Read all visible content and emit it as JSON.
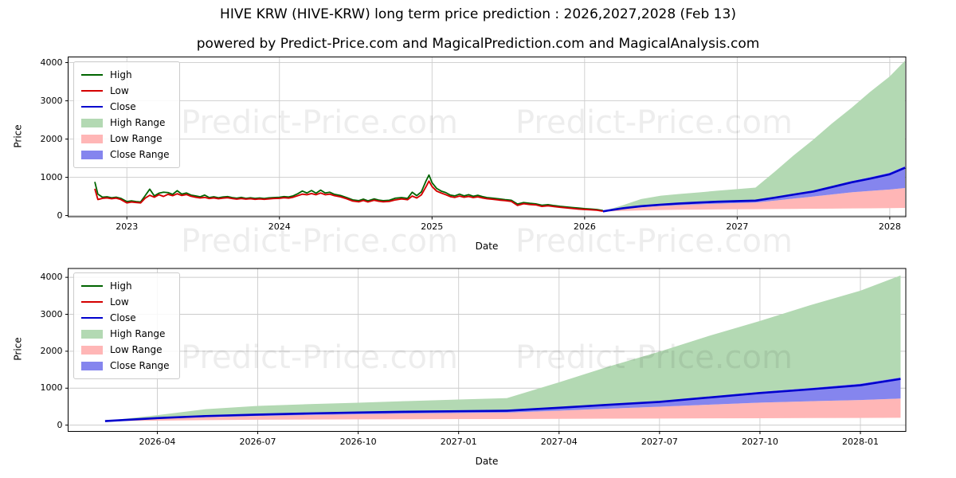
{
  "page": {
    "title": "HIVE KRW (HIVE-KRW) long term price prediction : 2026,2027,2028 (Feb 13)",
    "subtitle": "powered by Predict-Price.com and MagicalPrediction.com and MagicalAnalysis.com",
    "watermark": "Predict-Price.com"
  },
  "colors": {
    "high": "#006400",
    "low": "#d40000",
    "close": "#0000cd",
    "high_range": "#b3d9b3",
    "low_range": "#ffb6b6",
    "close_range": "#8585ee",
    "grid": "#cccccc",
    "spine": "#000000"
  },
  "legend": {
    "items": [
      {
        "label": "High",
        "swatch": "line",
        "color_key": "high"
      },
      {
        "label": "Low",
        "swatch": "line",
        "color_key": "low"
      },
      {
        "label": "Close",
        "swatch": "line",
        "color_key": "close"
      },
      {
        "label": "High Range",
        "swatch": "patch",
        "color_key": "high_range"
      },
      {
        "label": "Low Range",
        "swatch": "patch",
        "color_key": "low_range"
      },
      {
        "label": "Close Range",
        "swatch": "patch",
        "color_key": "close_range"
      }
    ]
  },
  "chart_data": [
    {
      "type": "line",
      "title": "",
      "xlabel": "Date",
      "ylabel": "Price",
      "grid": true,
      "legend_position": "upper left",
      "xlim_years": [
        2022.615,
        2028.105
      ],
      "ylim": [
        -30,
        4147
      ],
      "yticks": [
        0,
        1000,
        2000,
        3000,
        4000
      ],
      "xticks": [
        {
          "label": "2023",
          "x": 2023
        },
        {
          "label": "2024",
          "x": 2024
        },
        {
          "label": "2025",
          "x": 2025
        },
        {
          "label": "2026",
          "x": 2026
        },
        {
          "label": "2027",
          "x": 2027
        },
        {
          "label": "2028",
          "x": 2028
        }
      ],
      "series": {
        "historical": {
          "x": [
            2022.79,
            2022.81,
            2022.84,
            2022.87,
            2022.9,
            2022.93,
            2022.96,
            2023.0,
            2023.03,
            2023.06,
            2023.09,
            2023.12,
            2023.15,
            2023.18,
            2023.21,
            2023.24,
            2023.27,
            2023.3,
            2023.33,
            2023.36,
            2023.39,
            2023.42,
            2023.45,
            2023.48,
            2023.51,
            2023.54,
            2023.57,
            2023.6,
            2023.63,
            2023.66,
            2023.69,
            2023.72,
            2023.75,
            2023.78,
            2023.81,
            2023.84,
            2023.87,
            2023.9,
            2023.93,
            2023.96,
            2024.0,
            2024.03,
            2024.06,
            2024.09,
            2024.12,
            2024.15,
            2024.18,
            2024.21,
            2024.24,
            2024.27,
            2024.3,
            2024.33,
            2024.36,
            2024.4,
            2024.44,
            2024.48,
            2024.52,
            2024.55,
            2024.58,
            2024.62,
            2024.65,
            2024.68,
            2024.72,
            2024.76,
            2024.8,
            2024.84,
            2024.87,
            2024.9,
            2024.93,
            2024.96,
            2024.98,
            2025.0,
            2025.03,
            2025.06,
            2025.09,
            2025.12,
            2025.15,
            2025.18,
            2025.21,
            2025.24,
            2025.27,
            2025.3,
            2025.33,
            2025.36,
            2025.4,
            2025.44,
            2025.48,
            2025.52,
            2025.56,
            2025.6,
            2025.64,
            2025.68,
            2025.72,
            2025.76,
            2025.8,
            2025.84,
            2025.88,
            2025.92,
            2025.96,
            2026.0,
            2026.04,
            2026.08,
            2026.12
          ],
          "low": [
            700,
            420,
            450,
            460,
            440,
            455,
            420,
            330,
            355,
            340,
            330,
            455,
            530,
            480,
            545,
            500,
            555,
            520,
            570,
            525,
            550,
            505,
            480,
            460,
            475,
            445,
            460,
            440,
            455,
            465,
            445,
            430,
            445,
            430,
            440,
            425,
            435,
            425,
            435,
            445,
            450,
            465,
            455,
            480,
            520,
            560,
            545,
            575,
            545,
            590,
            545,
            560,
            520,
            490,
            440,
            380,
            360,
            395,
            355,
            400,
            375,
            360,
            370,
            410,
            435,
            415,
            510,
            460,
            540,
            750,
            900,
            760,
            640,
            590,
            545,
            495,
            475,
            510,
            480,
            500,
            470,
            490,
            460,
            440,
            425,
            405,
            390,
            370,
            265,
            310,
            290,
            280,
            240,
            255,
            235,
            215,
            200,
            185,
            170,
            160,
            150,
            140,
            115
          ],
          "high": [
            880,
            560,
            480,
            490,
            465,
            480,
            450,
            365,
            385,
            365,
            355,
            520,
            690,
            515,
            585,
            610,
            600,
            555,
            650,
            560,
            590,
            535,
            515,
            490,
            535,
            470,
            490,
            465,
            485,
            495,
            470,
            455,
            475,
            450,
            465,
            448,
            460,
            445,
            462,
            470,
            478,
            495,
            485,
            515,
            570,
            640,
            590,
            655,
            585,
            665,
            590,
            610,
            555,
            525,
            470,
            410,
            390,
            430,
            385,
            435,
            405,
            390,
            400,
            455,
            470,
            450,
            610,
            520,
            620,
            900,
            1060,
            860,
            710,
            640,
            600,
            535,
            515,
            560,
            515,
            545,
            505,
            530,
            495,
            470,
            455,
            435,
            415,
            400,
            300,
            340,
            320,
            305,
            270,
            285,
            260,
            240,
            225,
            210,
            195,
            180,
            170,
            158,
            130
          ]
        },
        "prediction": {
          "x": [
            2026.12,
            2026.25,
            2026.37,
            2026.5,
            2026.62,
            2026.75,
            2026.87,
            2027.0,
            2027.12,
            2027.25,
            2027.37,
            2027.5,
            2027.62,
            2027.75,
            2027.87,
            2028.0,
            2028.1
          ],
          "close": [
            110,
            190,
            245,
            285,
            315,
            342,
            362,
            377,
            390,
            470,
            548,
            630,
            745,
            870,
            965,
            1080,
            1250
          ],
          "close_low": [
            108,
            170,
            215,
            248,
            272,
            294,
            312,
            328,
            340,
            392,
            444,
            498,
            552,
            608,
            645,
            680,
            720
          ],
          "close_high": [
            112,
            196,
            252,
            294,
            325,
            353,
            374,
            390,
            404,
            486,
            566,
            652,
            770,
            900,
            1000,
            1120,
            1290
          ],
          "high_top": [
            112,
            270,
            430,
            520,
            565,
            605,
            650,
            692,
            730,
            1160,
            1575,
            1990,
            2405,
            2820,
            3230,
            3640,
            4050
          ],
          "low_bottom": [
            105,
            122,
            135,
            145,
            151,
            156,
            160,
            163,
            165,
            170,
            174,
            178,
            182,
            186,
            190,
            195,
            200
          ]
        }
      }
    },
    {
      "type": "line",
      "title": "",
      "xlabel": "Date",
      "ylabel": "Price",
      "grid": true,
      "legend_position": "upper left",
      "xlim_years": [
        2026.028,
        2028.113
      ],
      "ylim": [
        -170,
        4240
      ],
      "yticks": [
        0,
        1000,
        2000,
        3000,
        4000
      ],
      "xticks": [
        {
          "label": "2026-04",
          "x": 2026.25
        },
        {
          "label": "2026-07",
          "x": 2026.5
        },
        {
          "label": "2026-10",
          "x": 2026.75
        },
        {
          "label": "2027-01",
          "x": 2027.0
        },
        {
          "label": "2027-04",
          "x": 2027.25
        },
        {
          "label": "2027-07",
          "x": 2027.5
        },
        {
          "label": "2027-10",
          "x": 2027.75
        },
        {
          "label": "2028-01",
          "x": 2028.0
        }
      ],
      "series": {
        "prediction": {
          "x": [
            2026.12,
            2026.25,
            2026.37,
            2026.5,
            2026.62,
            2026.75,
            2026.87,
            2027.0,
            2027.12,
            2027.25,
            2027.37,
            2027.5,
            2027.62,
            2027.75,
            2027.87,
            2028.0,
            2028.1
          ],
          "close": [
            110,
            190,
            245,
            285,
            315,
            342,
            362,
            377,
            390,
            470,
            548,
            630,
            745,
            870,
            965,
            1080,
            1250
          ],
          "close_low": [
            108,
            170,
            215,
            248,
            272,
            294,
            312,
            328,
            340,
            392,
            444,
            498,
            552,
            608,
            645,
            680,
            720
          ],
          "close_high": [
            112,
            196,
            252,
            294,
            325,
            353,
            374,
            390,
            404,
            486,
            566,
            652,
            770,
            900,
            1000,
            1120,
            1290
          ],
          "high_top": [
            112,
            270,
            430,
            520,
            565,
            605,
            650,
            692,
            730,
            1160,
            1575,
            1990,
            2405,
            2820,
            3230,
            3640,
            4050
          ],
          "low_bottom": [
            105,
            122,
            135,
            145,
            151,
            156,
            160,
            163,
            165,
            170,
            174,
            178,
            182,
            186,
            190,
            195,
            200
          ]
        }
      }
    }
  ]
}
